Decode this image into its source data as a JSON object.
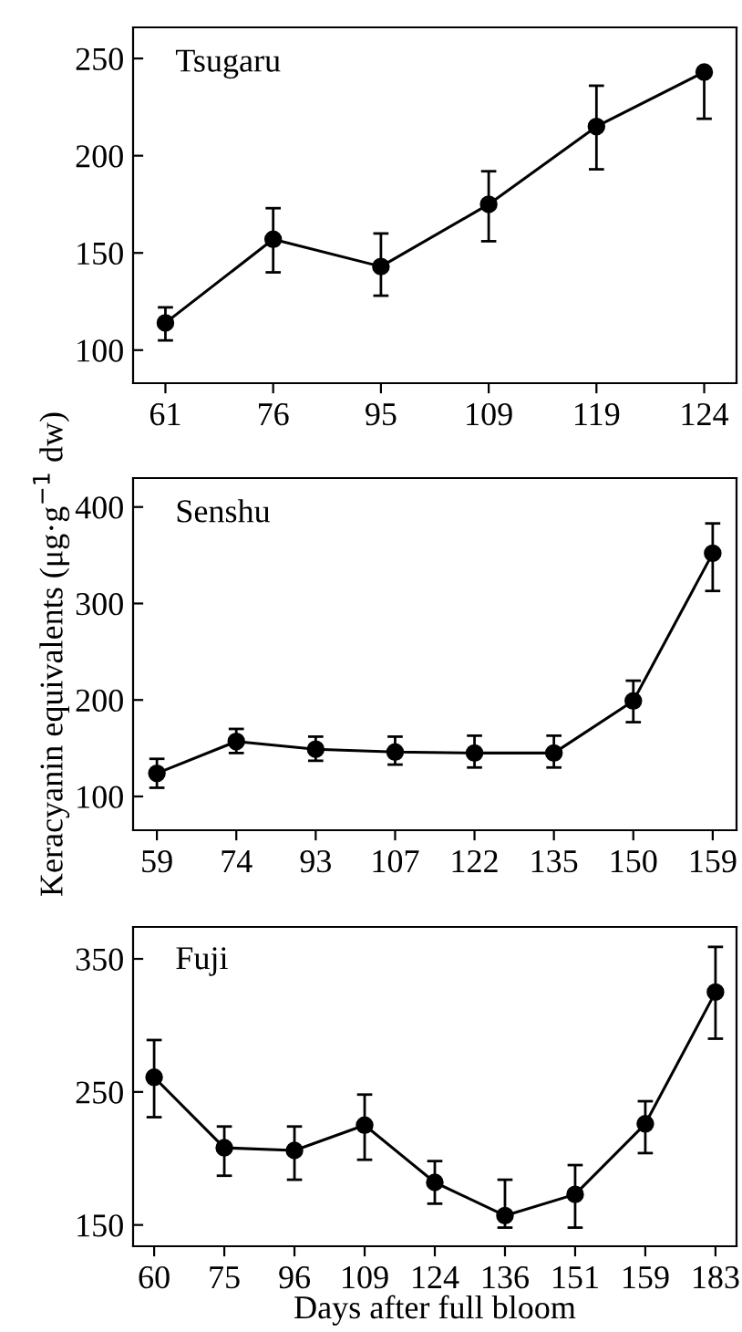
{
  "chart_data": [
    {
      "type": "line",
      "title": "Tsugaru",
      "categories": [
        "61",
        "76",
        "95",
        "109",
        "119",
        "124"
      ],
      "ylim": [
        83,
        266
      ],
      "yticks": [
        100,
        150,
        200,
        250
      ],
      "marker": "circle",
      "line_style": "solid",
      "grid": false,
      "series": [
        {
          "color": "#000000",
          "values": [
            114,
            157,
            143,
            175,
            215,
            243
          ],
          "errors": [
            [
              105,
              122
            ],
            [
              140,
              173
            ],
            [
              128,
              160
            ],
            [
              156,
              192
            ],
            [
              193,
              236
            ],
            [
              219,
              243
            ]
          ]
        }
      ]
    },
    {
      "type": "line",
      "title": "Senshu",
      "ylabel": "Keracyanin equivalents (μg·g$^{−1}$ dw)",
      "categories": [
        "59",
        "74",
        "93",
        "107",
        "122",
        "135",
        "150",
        "159"
      ],
      "ylim": [
        65,
        430
      ],
      "yticks": [
        100,
        200,
        300,
        400
      ],
      "marker": "circle",
      "line_style": "solid",
      "grid": false,
      "series": [
        {
          "color": "#000000",
          "values": [
            124,
            157,
            149,
            146,
            145,
            145,
            199,
            352
          ],
          "errors": [
            [
              109,
              139
            ],
            [
              145,
              170
            ],
            [
              137,
              162
            ],
            [
              133,
              162
            ],
            [
              130,
              163
            ],
            [
              130,
              163
            ],
            [
              177,
              220
            ],
            [
              313,
              383
            ]
          ]
        }
      ]
    },
    {
      "type": "line",
      "title": "Fuji",
      "xlabel": "Days after full bloom",
      "categories": [
        "60",
        "75",
        "96",
        "109",
        "124",
        "136",
        "151",
        "159",
        "183"
      ],
      "ylim": [
        134,
        374
      ],
      "yticks": [
        150,
        250,
        350
      ],
      "marker": "circle",
      "line_style": "solid",
      "grid": false,
      "series": [
        {
          "color": "#000000",
          "values": [
            261,
            208,
            206,
            225,
            182,
            157,
            173,
            226,
            325
          ],
          "errors": [
            [
              231,
              289
            ],
            [
              187,
              224
            ],
            [
              184,
              224
            ],
            [
              199,
              248
            ],
            [
              166,
              198
            ],
            [
              148,
              184
            ],
            [
              148,
              195
            ],
            [
              204,
              243
            ],
            [
              290,
              359
            ]
          ]
        }
      ]
    }
  ]
}
